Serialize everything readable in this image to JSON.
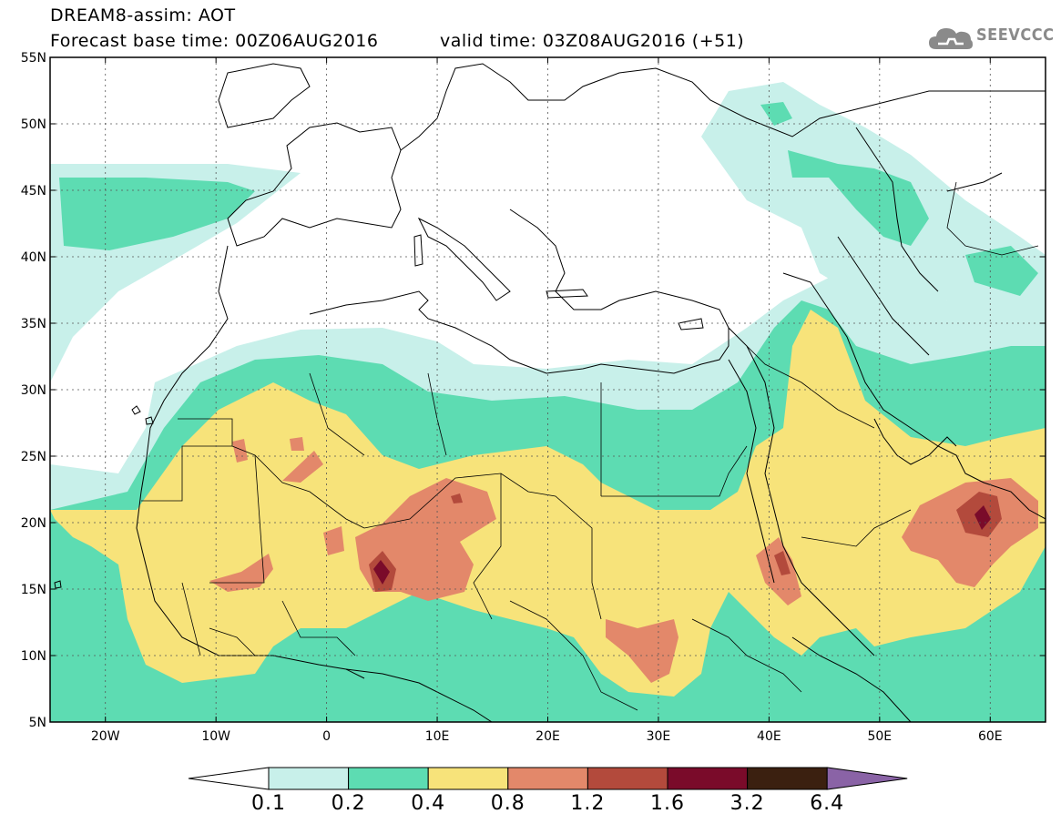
{
  "header": {
    "title_line1": "DREAM8-assim: AOT",
    "title_line2": "Forecast base time: 00Z06AUG2016",
    "valid_time": "valid time: 03Z08AUG2016 (+51)",
    "logo_text": "SEEVCCC",
    "logo_icon": "cloud-icon"
  },
  "axes": {
    "lat_labels": [
      "55N",
      "50N",
      "45N",
      "40N",
      "35N",
      "30N",
      "25N",
      "20N",
      "15N",
      "10N",
      "5N"
    ],
    "lon_labels": [
      "20W",
      "10W",
      "0",
      "10E",
      "20E",
      "30E",
      "40E",
      "50E",
      "60E"
    ],
    "lat_range": [
      5,
      55
    ],
    "lon_range": [
      -25,
      65
    ],
    "grid": true
  },
  "colorbar": {
    "labels": [
      "0.1",
      "0.2",
      "0.4",
      "0.8",
      "1.2",
      "1.6",
      "3.2",
      "6.4"
    ],
    "colors": [
      "#ffffff",
      "#c8f0ea",
      "#5ddcb2",
      "#f7e37a",
      "#e3886a",
      "#b34a3c",
      "#7a0b2a",
      "#3b2010",
      "#8a63a6"
    ]
  },
  "colors": {
    "band_0_1": "#c8f0ea",
    "band_0_2": "#5ddcb2",
    "band_0_4": "#f7e37a",
    "band_0_8": "#e3886a",
    "band_1_2": "#b34a3c",
    "band_1_6": "#7a0b2a"
  }
}
